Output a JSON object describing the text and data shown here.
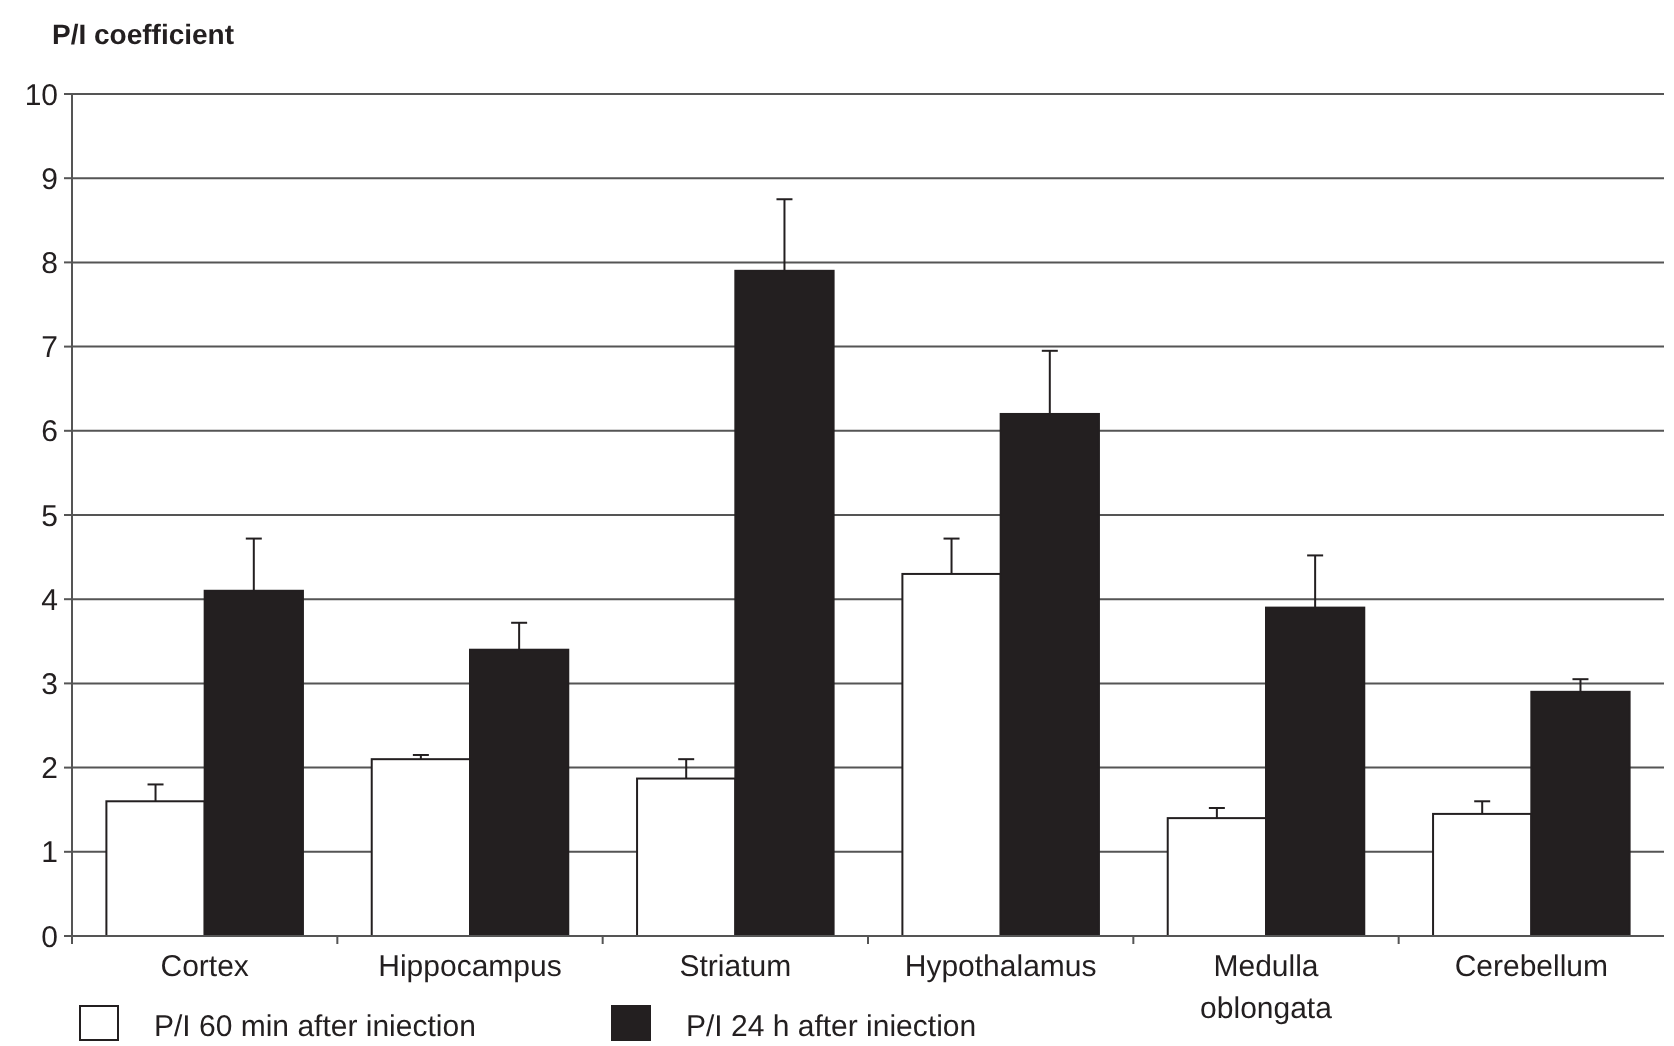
{
  "chart_data": {
    "type": "bar",
    "ylabel": "P/I coefficient",
    "categories": [
      "Cortex",
      "Hippocampus",
      "Striatum",
      "Hypothalamus",
      "Medulla oblongata",
      "Cerebellum"
    ],
    "series": [
      {
        "name": "P/I 60 min after iniection",
        "color": "#ffffff",
        "values": [
          1.6,
          2.1,
          1.87,
          4.3,
          1.4,
          1.45
        ],
        "errors": [
          [
            1.6,
            1.8
          ],
          [
            2.1,
            2.15
          ],
          [
            1.87,
            2.1
          ],
          [
            4.3,
            4.72
          ],
          [
            1.4,
            1.52
          ],
          [
            1.45,
            1.6
          ]
        ]
      },
      {
        "name": "P/I 24 h after iniection",
        "color": "#231f20",
        "values": [
          4.1,
          3.4,
          7.9,
          6.2,
          3.9,
          2.9
        ],
        "errors": [
          [
            4.1,
            4.72
          ],
          [
            3.4,
            3.72
          ],
          [
            7.9,
            8.75
          ],
          [
            6.2,
            6.95
          ],
          [
            3.9,
            4.52
          ],
          [
            2.9,
            3.05
          ]
        ]
      }
    ],
    "ylim": [
      0,
      10
    ],
    "yticks": [
      0,
      1,
      2,
      3,
      4,
      5,
      6,
      7,
      8,
      9,
      10
    ],
    "grid": "y",
    "legend": "bottom"
  }
}
